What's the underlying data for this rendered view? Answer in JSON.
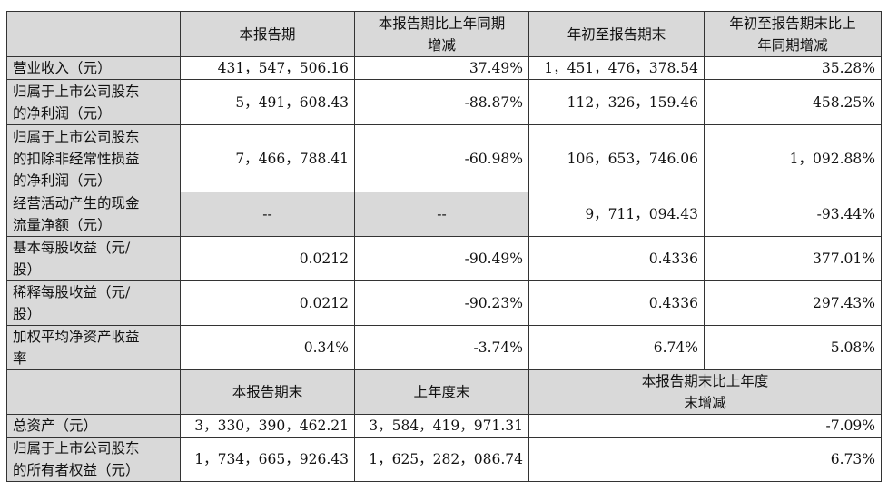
{
  "table": {
    "header": [
      "本报告期",
      "本报告期比上年同期增减",
      "年初至报告期末",
      "年初至报告期末比上年同期增减"
    ],
    "rows": [
      [
        "营业收入（元）",
        "431，547，506.16",
        "37.49%",
        "1，451，476，378.54",
        "35.28%"
      ],
      [
        "归属于上市公司股东的净利润（元）",
        "5，491，608.43",
        "-88.87%",
        "112，326，159.46",
        "458.25%"
      ],
      [
        "归属于上市公司股东的扣除非经常性损益的净利润（元）",
        "7，466，788.41",
        "-60.98%",
        "106，653，746.06",
        "1，092.88%"
      ],
      [
        "经营活动产生的现金流量净额（元）",
        "--",
        "--",
        "9，711，094.43",
        "-93.44%"
      ],
      [
        "基本每股收益（元/股）",
        "0.0212",
        "-90.49%",
        "0.4336",
        "377.01%"
      ],
      [
        "稀释每股收益（元/股）",
        "0.0212",
        "-90.23%",
        "0.4336",
        "297.43%"
      ],
      [
        "加权平均净资产收益率",
        "0.34%",
        "-3.74%",
        "6.74%",
        "5.08%"
      ]
    ],
    "subheader": [
      "本报告期末",
      "上年度末",
      "本报告期末比上年度末增减"
    ],
    "rows2": [
      [
        "总资产（元）",
        "3，330，390，462.21",
        "3，584，419，971.31",
        "-7.09%"
      ],
      [
        "归属于上市公司股东的所有者权益（元）",
        "1，734，665，926.43",
        "1，625，282，086.74",
        "6.73%"
      ]
    ]
  }
}
